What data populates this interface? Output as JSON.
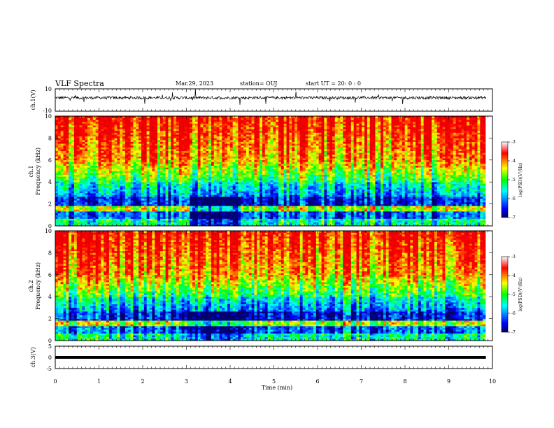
{
  "header": {
    "title": "VLF Spectra",
    "date": "Mar.29, 2023",
    "station": "station= OUJ",
    "start": "start  UT =   20: 0  : 0"
  },
  "chart_data": [
    {
      "type": "line",
      "name": "ch1-waveform",
      "ylabel": "ch.1(V)",
      "ylim": [
        -10,
        10
      ],
      "yticks": [
        "10",
        "-10"
      ],
      "xlim": [
        0,
        10
      ]
    },
    {
      "type": "heatmap",
      "name": "ch1-spectrogram",
      "ylabel_line1": "ch.1",
      "ylabel_line2": "Frequency  (kHz)",
      "ylim": [
        0,
        10
      ],
      "yticks": [
        "0",
        "2",
        "4",
        "6",
        "8",
        "10"
      ],
      "xlim": [
        0,
        9.85
      ],
      "quiet_interval_min": [
        3.1,
        4.25
      ]
    },
    {
      "type": "heatmap",
      "name": "ch2-spectrogram",
      "ylabel_line1": "ch.2",
      "ylabel_line2": "Frequency  (kHz)",
      "ylim": [
        0,
        10
      ],
      "yticks": [
        "0",
        "2",
        "4",
        "6",
        "8",
        "10"
      ],
      "xlim": [
        0,
        9.85
      ],
      "quiet_interval_min": [
        3.1,
        4.25
      ]
    },
    {
      "type": "line",
      "name": "ch3-waveform",
      "ylabel": "ch.3(V)",
      "ylim": [
        -5,
        5
      ],
      "yticks": [
        "5",
        "0",
        "-5"
      ],
      "x": [
        0,
        9.85
      ],
      "y": [
        0,
        0
      ],
      "xlabel": "Time  (min)",
      "xticks": [
        "0",
        "1",
        "2",
        "3",
        "4",
        "5",
        "6",
        "7",
        "8",
        "9",
        "10"
      ],
      "xlim": [
        0,
        10
      ]
    }
  ],
  "colorbars": [
    {
      "label": "log(PSD)(V²/Hz)",
      "ticks": [
        "-3",
        "-4",
        "-5",
        "-6",
        "-7"
      ],
      "range": [
        -7,
        -3
      ]
    },
    {
      "label": "log(PSD)(V²/Hz)",
      "ticks": [
        "-3",
        "-4",
        "-5",
        "-6",
        "-7"
      ],
      "range": [
        -7,
        -3
      ]
    }
  ],
  "colors": {
    "jet": [
      "#000080",
      "#0000ff",
      "#00ffff",
      "#00ff00",
      "#ffff00",
      "#ff0000",
      "#ff0000"
    ]
  }
}
